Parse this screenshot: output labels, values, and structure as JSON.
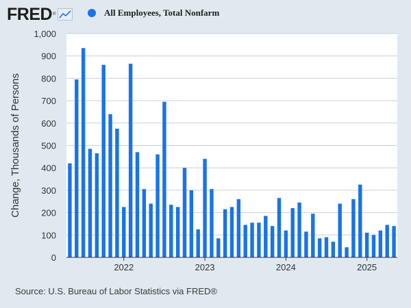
{
  "header": {
    "logo_text": "FRED",
    "logo_mark": "®",
    "logo_icon": "line-chart-icon"
  },
  "legend": {
    "series_name": "All Employees, Total Nonfarm",
    "color": "#1a73e8"
  },
  "source": "Source: U.S. Bureau of Labor Statistics via FRED®",
  "colors": {
    "bar": "#1a73e8",
    "page_background": "#e1e9f0",
    "plot_background": "#ffffff"
  },
  "chart_data": {
    "type": "bar",
    "ylabel": "Change, Thousands of Persons",
    "ylim": [
      0,
      1000
    ],
    "yticks": [
      0,
      100,
      200,
      300,
      400,
      500,
      600,
      700,
      800,
      900,
      1000
    ],
    "ytick_labels": [
      "0",
      "100",
      "200",
      "300",
      "400",
      "500",
      "600",
      "700",
      "800",
      "900",
      "1,000"
    ],
    "xtick_labels": [
      "2022",
      "2023",
      "2024",
      "2025"
    ],
    "xtick_dates": [
      "2022-01",
      "2023-01",
      "2024-01",
      "2025-01"
    ],
    "grid": true,
    "legend_position": "top",
    "categories": [
      "2021-05",
      "2021-06",
      "2021-07",
      "2021-08",
      "2021-09",
      "2021-10",
      "2021-11",
      "2021-12",
      "2022-01",
      "2022-02",
      "2022-03",
      "2022-04",
      "2022-05",
      "2022-06",
      "2022-07",
      "2022-08",
      "2022-09",
      "2022-10",
      "2022-11",
      "2022-12",
      "2023-01",
      "2023-02",
      "2023-03",
      "2023-04",
      "2023-05",
      "2023-06",
      "2023-07",
      "2023-08",
      "2023-09",
      "2023-10",
      "2023-11",
      "2023-12",
      "2024-01",
      "2024-02",
      "2024-03",
      "2024-04",
      "2024-05",
      "2024-06",
      "2024-07",
      "2024-08",
      "2024-09",
      "2024-10",
      "2024-11",
      "2024-12",
      "2025-01",
      "2025-02",
      "2025-03",
      "2025-04",
      "2025-05"
    ],
    "series": [
      {
        "name": "All Employees, Total Nonfarm",
        "values": [
          420,
          795,
          935,
          485,
          465,
          860,
          640,
          575,
          225,
          865,
          470,
          305,
          240,
          460,
          695,
          235,
          225,
          400,
          300,
          125,
          440,
          305,
          85,
          215,
          225,
          260,
          145,
          155,
          155,
          185,
          140,
          265,
          120,
          220,
          245,
          115,
          195,
          85,
          90,
          70,
          240,
          45,
          260,
          325,
          110,
          100,
          120,
          145,
          140
        ]
      }
    ]
  }
}
